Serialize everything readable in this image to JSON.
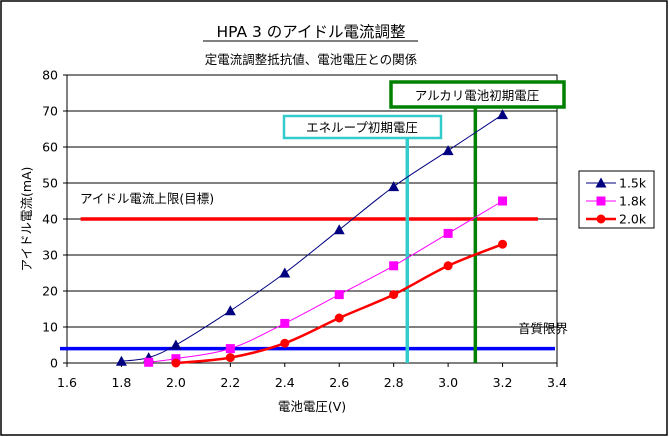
{
  "chart_data": {
    "type": "line",
    "title": "HPA 3 のアイドル電流調整",
    "subtitle": "定電流調整抵抗値、電池電圧との関係",
    "xlabel": "電池電圧(V)",
    "ylabel": "アイドル電流(mA)",
    "xlim": [
      1.6,
      3.4
    ],
    "ylim": [
      0,
      80
    ],
    "xticks": [
      "1.6",
      "1.8",
      "2.0",
      "2.2",
      "2.4",
      "2.6",
      "2.8",
      "3.0",
      "3.2",
      "3.4"
    ],
    "yticks": [
      "0",
      "10",
      "20",
      "30",
      "40",
      "50",
      "60",
      "70",
      "80"
    ],
    "grid": "horizontal",
    "legend_position": "right",
    "series": [
      {
        "name": "1.5k",
        "color": "#000080",
        "marker": "triangle",
        "points": [
          [
            1.8,
            0.5
          ],
          [
            1.9,
            1.5
          ],
          [
            2.0,
            5
          ],
          [
            2.2,
            14.5
          ],
          [
            2.4,
            25
          ],
          [
            2.6,
            37
          ],
          [
            2.8,
            49
          ],
          [
            3.0,
            59
          ],
          [
            3.2,
            69
          ]
        ]
      },
      {
        "name": "1.8k",
        "color": "#ff00ff",
        "marker": "square",
        "points": [
          [
            1.9,
            0.2
          ],
          [
            2.0,
            1.2
          ],
          [
            2.2,
            4
          ],
          [
            2.4,
            11
          ],
          [
            2.6,
            19
          ],
          [
            2.8,
            27
          ],
          [
            3.0,
            36
          ],
          [
            3.2,
            45
          ]
        ]
      },
      {
        "name": "2.0k",
        "color": "#ff0000",
        "marker": "circle",
        "points": [
          [
            2.0,
            0
          ],
          [
            2.2,
            1.5
          ],
          [
            2.4,
            5.5
          ],
          [
            2.6,
            12.5
          ],
          [
            2.8,
            19
          ],
          [
            3.0,
            27
          ],
          [
            3.2,
            33
          ]
        ]
      }
    ],
    "reference_lines": {
      "idle_limit": {
        "label": "アイドル電流上限(目標)",
        "y": 40,
        "x_range": [
          1.65,
          3.33
        ],
        "color": "#ff0000"
      },
      "sound_limit": {
        "label": "音質限界",
        "y": 4,
        "x_range": [
          1.6,
          3.4
        ],
        "color": "#0000ff"
      },
      "eneloop": {
        "label": "エネループ初期電圧",
        "x": 2.85,
        "color": "#33cccc"
      },
      "alkaline": {
        "label": "アルカリ電池初期電圧",
        "x": 3.1,
        "color": "#008000"
      }
    }
  }
}
